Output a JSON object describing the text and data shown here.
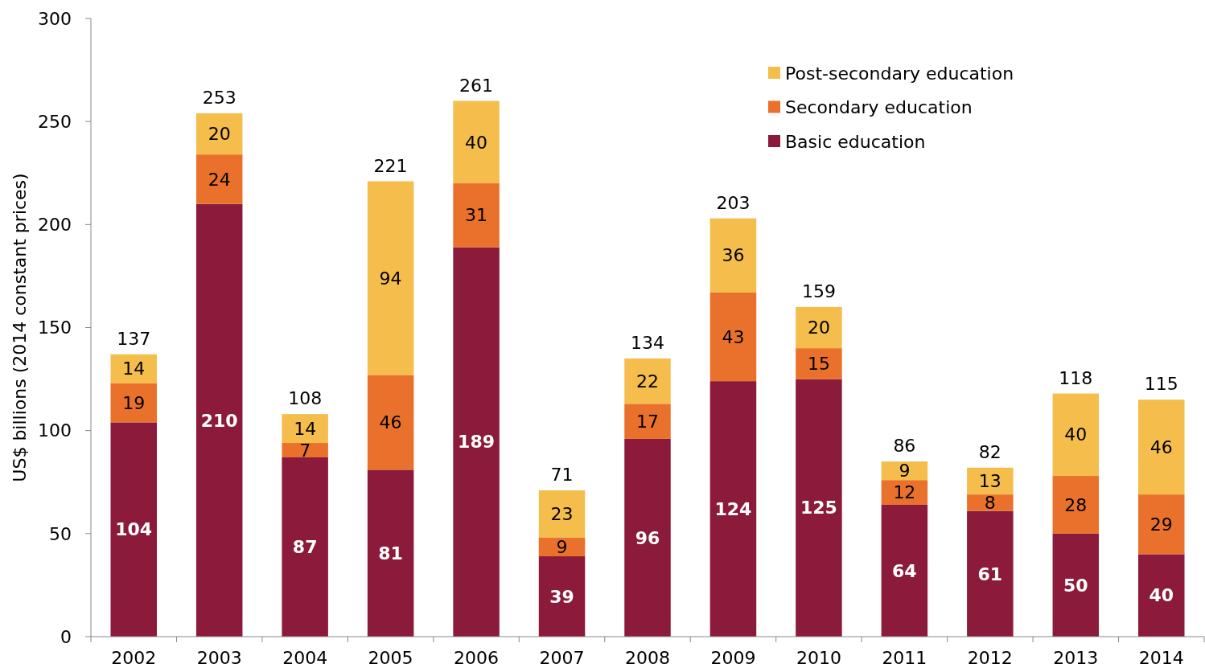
{
  "chart_data": {
    "type": "bar",
    "stacked": true,
    "ylabel": "US$ billions (2014 constant prices)",
    "categories": [
      "2002",
      "2003",
      "2004",
      "2005",
      "2006",
      "2007",
      "2008",
      "2009",
      "2010",
      "2011",
      "2012",
      "2013",
      "2014"
    ],
    "series": [
      {
        "name": "Basic education",
        "color": "#8b1a3b",
        "values": [
          104,
          210,
          87,
          81,
          189,
          39,
          96,
          124,
          125,
          64,
          61,
          50,
          40
        ]
      },
      {
        "name": "Secondary education",
        "color": "#ea712b",
        "values": [
          19,
          24,
          7,
          46,
          31,
          9,
          17,
          43,
          15,
          12,
          8,
          28,
          29
        ]
      },
      {
        "name": "Post-secondary education",
        "color": "#f4bd4c",
        "values": [
          14,
          20,
          14,
          94,
          40,
          23,
          22,
          36,
          20,
          9,
          13,
          40,
          46
        ]
      }
    ],
    "totals": [
      "137",
      "253",
      "108",
      "221",
      "261",
      "71",
      "134",
      "203",
      "159",
      "86",
      "82",
      "118",
      "115"
    ],
    "ylim": [
      0,
      300
    ],
    "yticks": [
      0,
      50,
      100,
      150,
      200,
      250,
      300
    ],
    "data_labels": true,
    "grid": false,
    "legend": "top right"
  }
}
